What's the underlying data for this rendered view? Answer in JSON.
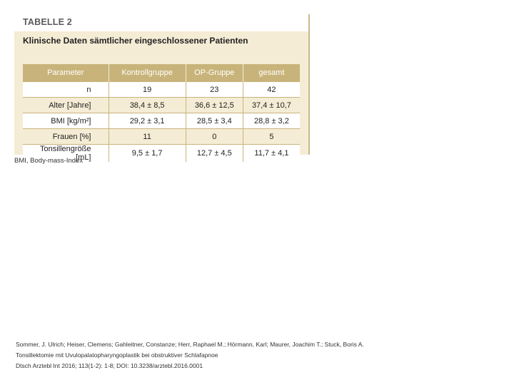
{
  "table": {
    "label": "TABELLE 2",
    "caption": "Klinische Daten sämtlicher eingeschlossener Patienten",
    "headers": [
      "Parameter",
      "Kontrollgruppe",
      "OP-Gruppe",
      "gesamt"
    ],
    "rows": [
      {
        "parameter": "n",
        "kontroll": "19",
        "op": "23",
        "gesamt": "42"
      },
      {
        "parameter": "Alter [Jahre]",
        "kontroll": "38,4 ± 8,5",
        "op": "36,6 ± 12,5",
        "gesamt": "37,4 ± 10,7"
      },
      {
        "parameter": "BMI [kg/m²]",
        "kontroll": "29,2 ± 3,1",
        "op": "28,5 ± 3,4",
        "gesamt": "28,8 ± 3,2"
      },
      {
        "parameter": "Frauen [%]",
        "kontroll": "11",
        "op": "0",
        "gesamt": "5"
      },
      {
        "parameter": "Tonsillengröße [mL]",
        "kontroll": "9,5 ± 1,7",
        "op": "12,7 ± 4,5",
        "gesamt": "11,7 ± 4,1"
      }
    ],
    "footnote": "BMI, Body-mass-Index"
  },
  "citation": {
    "authors": "Sommer, J. Ulrich; Heiser, Clemens; Gahleitner, Constanze; Herr, Raphael M.; Hörmann, Karl; Maurer, Joachim T.; Stuck, Boris A.",
    "title": "Tonsillektomie mit Uvulopalatopharyngoplastik bei obstruktiver Schlafapnoe",
    "journal": "Dtsch Arztebl Int 2016; 113(1-2): 1-8; DOI: 10.3238/arztebl.2016.0001"
  }
}
